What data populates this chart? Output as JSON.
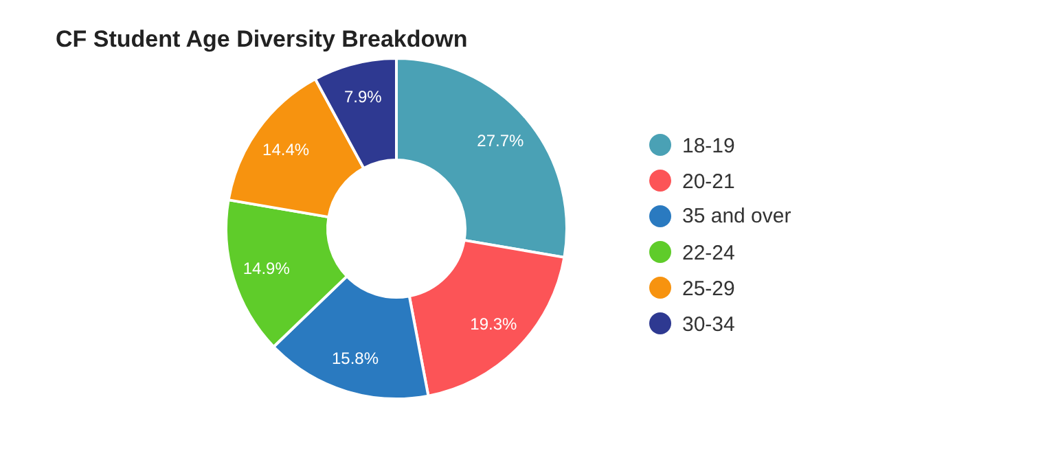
{
  "chart_data": {
    "type": "donut",
    "title": "CF Student Age Diversity Breakdown",
    "categories": [
      "18-19",
      "20-21",
      "35 and over",
      "22-24",
      "25-29",
      "30-34"
    ],
    "values": [
      27.7,
      19.3,
      15.8,
      14.9,
      14.4,
      7.9
    ],
    "colors": [
      "#4aa1b5",
      "#fc5457",
      "#2a7ac0",
      "#5fcc2a",
      "#f7930f",
      "#2e3991"
    ],
    "value_labels": [
      "27.7%",
      "19.3%",
      "15.8%",
      "14.9%",
      "14.4%",
      "7.9%"
    ],
    "legend": "right"
  }
}
